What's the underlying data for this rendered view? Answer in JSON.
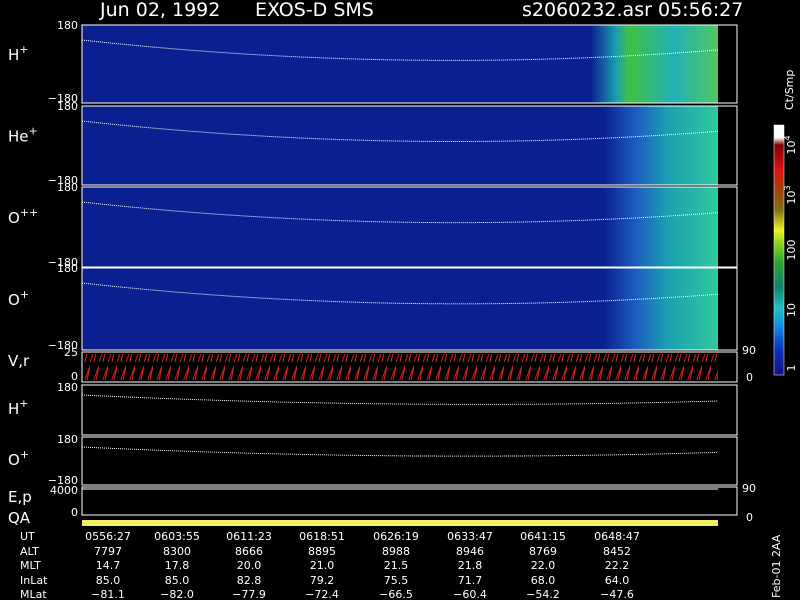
{
  "header": {
    "date": "Jun 02, 1992",
    "instrument": "EXOS-D SMS",
    "file": "s2060232.asr",
    "time": "05:56:27"
  },
  "panels": [
    {
      "label": "H",
      "sup": "+",
      "top": "180",
      "bottom": "−180"
    },
    {
      "label": "He",
      "sup": "+",
      "top": "180",
      "bottom": "−180"
    },
    {
      "label": "O",
      "sup": "++",
      "top": "180",
      "bottom": "−180"
    },
    {
      "label": "O",
      "sup": "+",
      "top": "180",
      "bottom": "−180"
    }
  ],
  "vr": {
    "label": "V,r",
    "top": "25",
    "bottom": "0",
    "right_top": "90",
    "right_bottom": "0"
  },
  "pitch_panels": [
    {
      "label": "H",
      "sup": "+",
      "top": "180"
    },
    {
      "label": "O",
      "sup": "+",
      "top": "180",
      "bottom": "−180"
    }
  ],
  "ep": {
    "label": "E,p",
    "top": "4000",
    "bottom": "0",
    "right_top": "90",
    "right_bottom": "0"
  },
  "qa": {
    "label": "QA"
  },
  "colorbar": {
    "unit": "Ct/Smp",
    "labels": [
      {
        "base": "10",
        "sup": "4"
      },
      {
        "base": "10",
        "sup": "3"
      },
      {
        "base": "100"
      },
      {
        "base": "10"
      },
      {
        "base": "1"
      }
    ]
  },
  "table": {
    "row_labels": [
      "UT",
      "ALT",
      "MLT",
      "InLat",
      "MLat"
    ],
    "rows": [
      [
        "0556:27",
        "0603:55",
        "0611:23",
        "0618:51",
        "0626:19",
        "0633:47",
        "0641:15",
        "0648:47"
      ],
      [
        "7797",
        "8300",
        "8666",
        "8895",
        "8988",
        "8946",
        "8769",
        "8452"
      ],
      [
        "14.7",
        "17.8",
        "20.0",
        "21.0",
        "21.5",
        "21.8",
        "22.0",
        "22.2"
      ],
      [
        "85.0",
        "85.0",
        "82.8",
        "79.2",
        "75.5",
        "71.7",
        "68.0",
        "64.0"
      ],
      [
        "−81.1",
        "−82.0",
        "−77.9",
        "−72.4",
        "−66.5",
        "−60.4",
        "−54.2",
        "−47.6"
      ]
    ]
  },
  "footer": "Feb-01 2AA"
}
